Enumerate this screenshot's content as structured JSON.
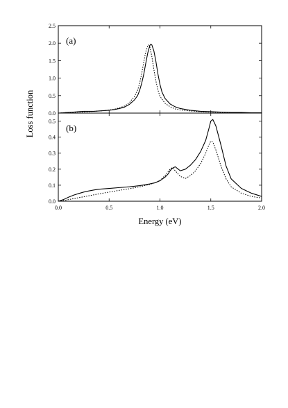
{
  "chart_data": [
    {
      "type": "line",
      "panel_label": "(a)",
      "xlim": [
        0.0,
        2.0
      ],
      "ylim": [
        0.0,
        2.5
      ],
      "xticks": [
        0.0,
        0.5,
        1.0,
        1.5,
        2.0
      ],
      "yticks": [
        0.0,
        0.5,
        1.0,
        1.5,
        2.0,
        2.5
      ],
      "ytick_labels": [
        "0.0",
        "0.5",
        "1.0",
        "1.5",
        "2.0",
        "2.5"
      ],
      "grid": false,
      "series": [
        {
          "style": "solid",
          "x": [
            0.0,
            0.05,
            0.1,
            0.15,
            0.2,
            0.25,
            0.3,
            0.35,
            0.4,
            0.45,
            0.5,
            0.55,
            0.6,
            0.65,
            0.7,
            0.75,
            0.78,
            0.8,
            0.82,
            0.84,
            0.86,
            0.88,
            0.9,
            0.91,
            0.92,
            0.94,
            0.96,
            0.98,
            1.0,
            1.02,
            1.05,
            1.1,
            1.15,
            1.2,
            1.3,
            1.4,
            1.5,
            1.6,
            1.7,
            1.8,
            1.9,
            2.0
          ],
          "y": [
            0.0,
            0.01,
            0.02,
            0.03,
            0.04,
            0.05,
            0.05,
            0.05,
            0.06,
            0.07,
            0.08,
            0.1,
            0.13,
            0.17,
            0.25,
            0.38,
            0.5,
            0.65,
            0.85,
            1.1,
            1.42,
            1.72,
            1.93,
            1.97,
            1.95,
            1.78,
            1.48,
            1.12,
            0.82,
            0.6,
            0.42,
            0.26,
            0.18,
            0.13,
            0.08,
            0.05,
            0.04,
            0.03,
            0.02,
            0.02,
            0.01,
            0.01
          ]
        },
        {
          "style": "dotted",
          "x": [
            0.0,
            0.05,
            0.1,
            0.15,
            0.2,
            0.25,
            0.3,
            0.35,
            0.4,
            0.45,
            0.5,
            0.55,
            0.6,
            0.65,
            0.7,
            0.75,
            0.78,
            0.8,
            0.82,
            0.84,
            0.86,
            0.88,
            0.89,
            0.9,
            0.92,
            0.94,
            0.96,
            0.98,
            1.0,
            1.05,
            1.1,
            1.15,
            1.2,
            1.3,
            1.4,
            1.5,
            1.6,
            1.7,
            1.8,
            1.9,
            2.0
          ],
          "y": [
            0.0,
            0.01,
            0.02,
            0.02,
            0.03,
            0.03,
            0.04,
            0.05,
            0.06,
            0.07,
            0.09,
            0.11,
            0.15,
            0.2,
            0.3,
            0.48,
            0.65,
            0.85,
            1.12,
            1.45,
            1.75,
            1.92,
            1.95,
            1.9,
            1.62,
            1.25,
            0.92,
            0.66,
            0.48,
            0.28,
            0.18,
            0.12,
            0.09,
            0.06,
            0.04,
            0.03,
            0.02,
            0.02,
            0.01,
            0.01,
            0.01
          ]
        }
      ]
    },
    {
      "type": "line",
      "panel_label": "(b)",
      "xlabel": "Energy (eV)",
      "ylabel": "Loss function",
      "xlim": [
        0.0,
        2.0
      ],
      "ylim": [
        0.0,
        0.55
      ],
      "xticks": [
        0.0,
        0.5,
        1.0,
        1.5,
        2.0
      ],
      "xtick_labels": [
        "0.0",
        "0.5",
        "1.0",
        "1.5",
        "2.0"
      ],
      "yticks": [
        0.0,
        0.1,
        0.2,
        0.3,
        0.4,
        0.5
      ],
      "ytick_labels": [
        "0.0",
        "0.1",
        "0.2",
        "0.3",
        "0.4",
        "0.5"
      ],
      "grid": false,
      "series": [
        {
          "style": "solid",
          "x": [
            0.0,
            0.05,
            0.1,
            0.15,
            0.2,
            0.25,
            0.3,
            0.35,
            0.4,
            0.5,
            0.6,
            0.7,
            0.8,
            0.9,
            0.95,
            1.0,
            1.05,
            1.08,
            1.1,
            1.12,
            1.15,
            1.18,
            1.2,
            1.25,
            1.3,
            1.35,
            1.4,
            1.45,
            1.48,
            1.5,
            1.52,
            1.55,
            1.6,
            1.65,
            1.7,
            1.8,
            1.9,
            2.0
          ],
          "y": [
            0.0,
            0.01,
            0.025,
            0.038,
            0.048,
            0.057,
            0.064,
            0.07,
            0.075,
            0.08,
            0.085,
            0.09,
            0.097,
            0.108,
            0.115,
            0.128,
            0.15,
            0.17,
            0.19,
            0.205,
            0.215,
            0.2,
            0.19,
            0.2,
            0.225,
            0.26,
            0.31,
            0.38,
            0.45,
            0.5,
            0.51,
            0.47,
            0.35,
            0.22,
            0.14,
            0.08,
            0.05,
            0.03
          ]
        },
        {
          "style": "dotted",
          "x": [
            0.0,
            0.05,
            0.1,
            0.15,
            0.2,
            0.25,
            0.3,
            0.35,
            0.4,
            0.5,
            0.6,
            0.7,
            0.8,
            0.9,
            0.95,
            1.0,
            1.05,
            1.08,
            1.1,
            1.12,
            1.15,
            1.2,
            1.25,
            1.3,
            1.35,
            1.4,
            1.45,
            1.48,
            1.5,
            1.52,
            1.55,
            1.6,
            1.65,
            1.7,
            1.8,
            1.9,
            2.0
          ],
          "y": [
            0.0,
            0.004,
            0.01,
            0.016,
            0.022,
            0.028,
            0.034,
            0.04,
            0.046,
            0.057,
            0.068,
            0.078,
            0.09,
            0.105,
            0.115,
            0.13,
            0.16,
            0.185,
            0.2,
            0.21,
            0.19,
            0.155,
            0.142,
            0.16,
            0.19,
            0.235,
            0.3,
            0.35,
            0.375,
            0.37,
            0.32,
            0.22,
            0.14,
            0.09,
            0.05,
            0.03,
            0.02
          ]
        }
      ]
    }
  ]
}
